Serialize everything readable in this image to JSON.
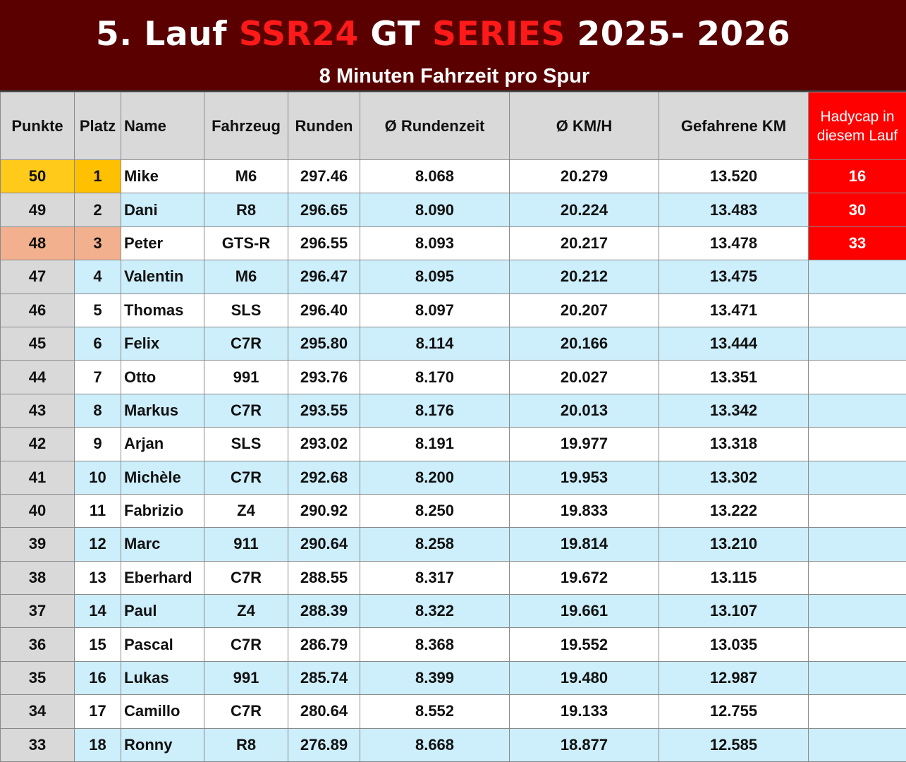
{
  "header": {
    "title_parts": [
      {
        "text": "5. Lauf ",
        "color": "#ffffff"
      },
      {
        "text": "SSR24",
        "color": "#ff1a1a"
      },
      {
        "text": " GT ",
        "color": "#ffffff"
      },
      {
        "text": "SERIES",
        "color": "#ff1a1a"
      },
      {
        "text": " 2025- 2026",
        "color": "#ffffff"
      }
    ],
    "subtitle": "8 Minuten Fahrzeit pro Spur"
  },
  "table": {
    "columns": {
      "points": "Punkte",
      "place": "Platz",
      "name": "Name",
      "vehicle": "Fahrzeug",
      "laps": "Runden",
      "avg_laptime": "Ø Rundenzeit",
      "avg_kmh": "Ø KM/H",
      "km_driven": "Gefahrene KM",
      "handicap": "Hadycap in diesem Lauf"
    },
    "rows": [
      {
        "points": "50",
        "place": "1",
        "name": "Mike",
        "vehicle": "M6",
        "laps": "297.46",
        "avg_laptime": "8.068",
        "avg_kmh": "20.279",
        "km_driven": "13.520",
        "handicap": "16"
      },
      {
        "points": "49",
        "place": "2",
        "name": "Dani",
        "vehicle": "R8",
        "laps": "296.65",
        "avg_laptime": "8.090",
        "avg_kmh": "20.224",
        "km_driven": "13.483",
        "handicap": "30"
      },
      {
        "points": "48",
        "place": "3",
        "name": "Peter",
        "vehicle": "GTS-R",
        "laps": "296.55",
        "avg_laptime": "8.093",
        "avg_kmh": "20.217",
        "km_driven": "13.478",
        "handicap": "33"
      },
      {
        "points": "47",
        "place": "4",
        "name": "Valentin",
        "vehicle": "M6",
        "laps": "296.47",
        "avg_laptime": "8.095",
        "avg_kmh": "20.212",
        "km_driven": "13.475",
        "handicap": ""
      },
      {
        "points": "46",
        "place": "5",
        "name": "Thomas",
        "vehicle": "SLS",
        "laps": "296.40",
        "avg_laptime": "8.097",
        "avg_kmh": "20.207",
        "km_driven": "13.471",
        "handicap": ""
      },
      {
        "points": "45",
        "place": "6",
        "name": "Felix",
        "vehicle": "C7R",
        "laps": "295.80",
        "avg_laptime": "8.114",
        "avg_kmh": "20.166",
        "km_driven": "13.444",
        "handicap": ""
      },
      {
        "points": "44",
        "place": "7",
        "name": "Otto",
        "vehicle": "991",
        "laps": "293.76",
        "avg_laptime": "8.170",
        "avg_kmh": "20.027",
        "km_driven": "13.351",
        "handicap": ""
      },
      {
        "points": "43",
        "place": "8",
        "name": "Markus",
        "vehicle": "C7R",
        "laps": "293.55",
        "avg_laptime": "8.176",
        "avg_kmh": "20.013",
        "km_driven": "13.342",
        "handicap": ""
      },
      {
        "points": "42",
        "place": "9",
        "name": "Arjan",
        "vehicle": "SLS",
        "laps": "293.02",
        "avg_laptime": "8.191",
        "avg_kmh": "19.977",
        "km_driven": "13.318",
        "handicap": ""
      },
      {
        "points": "41",
        "place": "10",
        "name": "Michèle",
        "vehicle": "C7R",
        "laps": "292.68",
        "avg_laptime": "8.200",
        "avg_kmh": "19.953",
        "km_driven": "13.302",
        "handicap": ""
      },
      {
        "points": "40",
        "place": "11",
        "name": "Fabrizio",
        "vehicle": "Z4",
        "laps": "290.92",
        "avg_laptime": "8.250",
        "avg_kmh": "19.833",
        "km_driven": "13.222",
        "handicap": ""
      },
      {
        "points": "39",
        "place": "12",
        "name": "Marc",
        "vehicle": "911",
        "laps": "290.64",
        "avg_laptime": "8.258",
        "avg_kmh": "19.814",
        "km_driven": "13.210",
        "handicap": ""
      },
      {
        "points": "38",
        "place": "13",
        "name": "Eberhard",
        "vehicle": "C7R",
        "laps": "288.55",
        "avg_laptime": "8.317",
        "avg_kmh": "19.672",
        "km_driven": "13.115",
        "handicap": ""
      },
      {
        "points": "37",
        "place": "14",
        "name": "Paul",
        "vehicle": "Z4",
        "laps": "288.39",
        "avg_laptime": "8.322",
        "avg_kmh": "19.661",
        "km_driven": "13.107",
        "handicap": ""
      },
      {
        "points": "36",
        "place": "15",
        "name": "Pascal",
        "vehicle": "C7R",
        "laps": "286.79",
        "avg_laptime": "8.368",
        "avg_kmh": "19.552",
        "km_driven": "13.035",
        "handicap": ""
      },
      {
        "points": "35",
        "place": "16",
        "name": "Lukas",
        "vehicle": "991",
        "laps": "285.74",
        "avg_laptime": "8.399",
        "avg_kmh": "19.480",
        "km_driven": "12.987",
        "handicap": ""
      },
      {
        "points": "34",
        "place": "17",
        "name": "Camillo",
        "vehicle": "C7R",
        "laps": "280.64",
        "avg_laptime": "8.552",
        "avg_kmh": "19.133",
        "km_driven": "12.755",
        "handicap": ""
      },
      {
        "points": "33",
        "place": "18",
        "name": "Ronny",
        "vehicle": "R8",
        "laps": "276.89",
        "avg_laptime": "8.668",
        "avg_kmh": "18.877",
        "km_driven": "12.585",
        "handicap": ""
      }
    ]
  },
  "colors": {
    "banner_bg": "#5a0000",
    "header_cell_bg": "#d9d9d9",
    "row_alt_bg": "#cdeefb",
    "gold": "#ffc000",
    "bronze": "#f2b08e",
    "handicap_red": "#ff0000"
  }
}
